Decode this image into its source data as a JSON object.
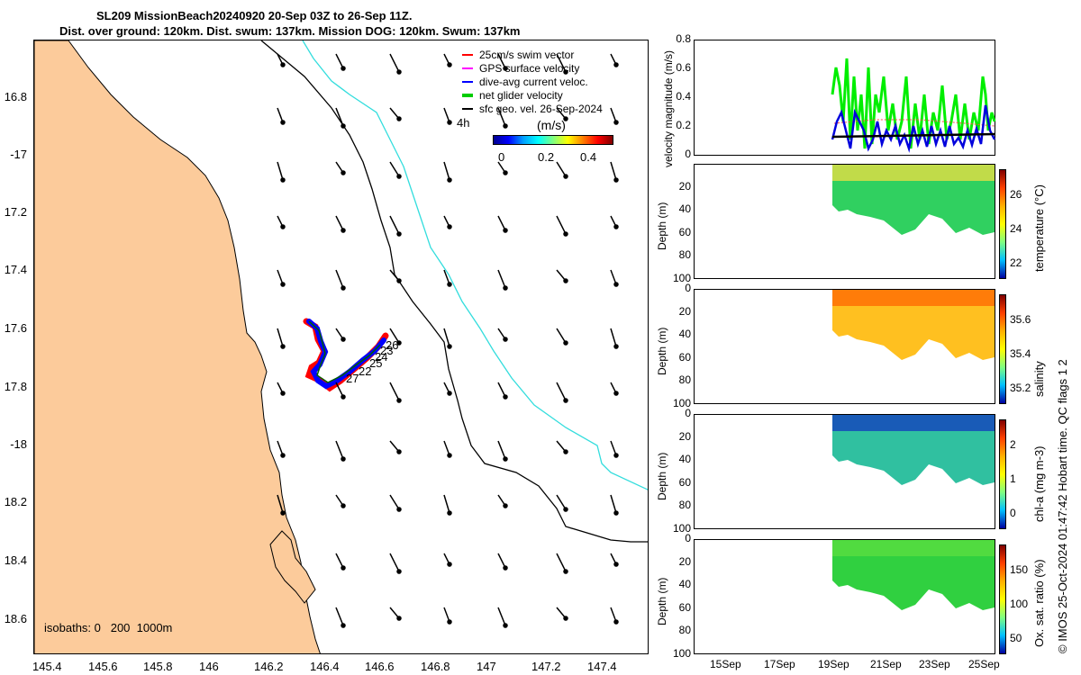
{
  "title": {
    "line1": "SL209 MissionBeach20240920 20-Sep 03Z to 26-Sep 11Z.",
    "line2": "Dist. over ground: 120km. Dist. swum: 137km. Mission DOG: 120km. Swum: 137km"
  },
  "map": {
    "lat_ticks": [
      "16.8",
      "-17",
      "17.2",
      "17.4",
      "17.6",
      "17.8",
      "-18",
      "18.2",
      "18.4",
      "18.6"
    ],
    "lon_ticks": [
      "145.4",
      "145.6",
      "145.8",
      "146",
      "146.2",
      "146.4",
      "146.6",
      "146.8",
      "147",
      "147.2",
      "147.4"
    ],
    "legend": [
      {
        "label": "25cm/s swim vector",
        "color": "#ff0000"
      },
      {
        "label": "GPS surface velocity",
        "color": "#ff00ff"
      },
      {
        "label": "dive-avg current veloc.",
        "color": "#0000ff"
      },
      {
        "label": "net glider velocity",
        "color": "#00cc00"
      },
      {
        "label": "sfc geo. vel. 26-Sep-2024",
        "color": "#000000"
      }
    ],
    "time_step_label": "4h",
    "colorbar": {
      "label": "(m/s)",
      "ticks": [
        "0",
        "0.2",
        "0.4"
      ]
    },
    "isobaths_label": "isobaths: 0   200  1000m",
    "day_labels": [
      "26",
      "23",
      "24",
      "25",
      "22",
      "27"
    ],
    "colors": {
      "land": "#fccb9b",
      "isobath_200": "#000000",
      "isobath_1000": "#33dddd"
    }
  },
  "panels": {
    "velocity": {
      "ylabel": "velocity magnitude (m/s)",
      "yticks": [
        "0.8",
        "0.6",
        "0.4",
        "0.2",
        "0"
      ]
    },
    "temperature": {
      "ylabel": "Depth (m)",
      "cbar_label": "temperature (°C)",
      "cbar_ticks": [
        "26",
        "24",
        "22"
      ],
      "yticks": [
        "20",
        "40",
        "60",
        "80",
        "100"
      ]
    },
    "salinity": {
      "ylabel": "Depth (m)",
      "cbar_label": "salinity",
      "cbar_ticks": [
        "35.6",
        "35.4",
        "35.2"
      ],
      "yticks": [
        "0",
        "20",
        "40",
        "60",
        "80",
        "100"
      ]
    },
    "chla": {
      "ylabel": "Depth (m)",
      "cbar_label": "chl-a (mg m-3)",
      "cbar_ticks": [
        "2",
        "1",
        "0"
      ],
      "yticks": [
        "0",
        "20",
        "40",
        "60",
        "80",
        "100"
      ]
    },
    "oxygen": {
      "ylabel": "Depth (m)",
      "cbar_label": "Ox. sat. ratio (%)",
      "cbar_ticks": [
        "150",
        "100",
        "50"
      ],
      "yticks": [
        "0",
        "20",
        "40",
        "60",
        "80",
        "100"
      ]
    },
    "xticks": [
      "15Sep",
      "17Sep",
      "19Sep",
      "21Sep",
      "23Sep",
      "25Sep"
    ]
  },
  "footer": "© IMOS 25-Oct-2024 01:47:42 Hobart time. QC flags 1  2"
}
